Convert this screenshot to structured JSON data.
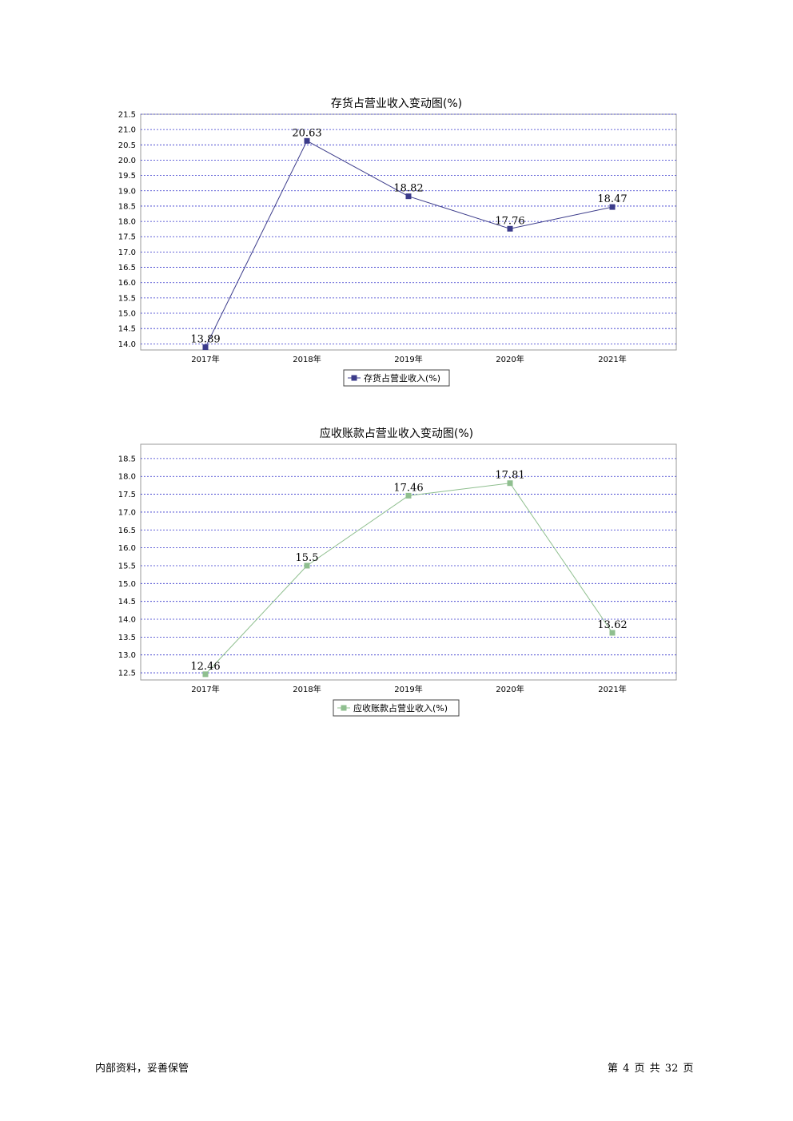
{
  "chart_data": [
    {
      "type": "line",
      "title": "存货占营业收入变动图(%)",
      "categories": [
        "2017年",
        "2018年",
        "2019年",
        "2020年",
        "2021年"
      ],
      "series": [
        {
          "name": "存货占营业收入(%)",
          "values": [
            13.89,
            20.63,
            18.82,
            17.76,
            18.47
          ],
          "color": "#3b3b8a"
        }
      ],
      "data_labels": [
        "13.89",
        "20.63",
        "18.82",
        "17.76",
        "18.47"
      ],
      "ylim": [
        13.8,
        21.5
      ],
      "yticks": [
        "14.0",
        "14.5",
        "15.0",
        "15.5",
        "16.0",
        "16.5",
        "17.0",
        "17.5",
        "18.0",
        "18.5",
        "19.0",
        "19.5",
        "20.0",
        "20.5",
        "21.0",
        "21.5"
      ],
      "xlabel": "",
      "ylabel": "",
      "grid": true,
      "legend": "bottom-center"
    },
    {
      "type": "line",
      "title": "应收账款占营业收入变动图(%)",
      "categories": [
        "2017年",
        "2018年",
        "2019年",
        "2020年",
        "2021年"
      ],
      "series": [
        {
          "name": "应收账款占营业收入(%)",
          "values": [
            12.46,
            15.5,
            17.46,
            17.81,
            13.62
          ],
          "color": "#8fbf8f"
        }
      ],
      "data_labels": [
        "12.46",
        "15.5",
        "17.46",
        "17.81",
        "13.62"
      ],
      "ylim": [
        12.3,
        18.9
      ],
      "yticks": [
        "12.5",
        "13.0",
        "13.5",
        "14.0",
        "14.5",
        "15.0",
        "15.5",
        "16.0",
        "16.5",
        "17.0",
        "17.5",
        "18.0",
        "18.5"
      ],
      "xlabel": "",
      "ylabel": "",
      "grid": true,
      "legend": "bottom-center"
    }
  ],
  "footer": {
    "left": "内部资料，妥善保管",
    "right": "第 4 页  共 32 页"
  }
}
